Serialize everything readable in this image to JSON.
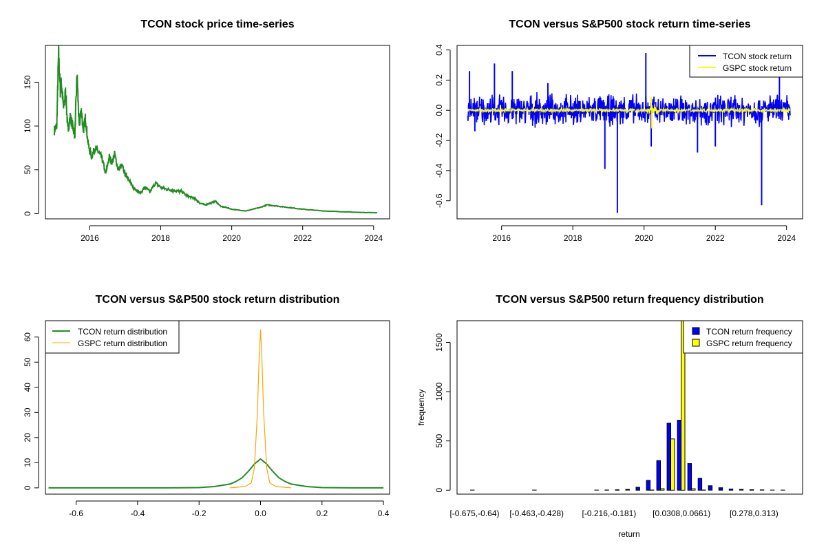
{
  "chart_data": [
    {
      "type": "line",
      "title": "TCON stock price time-series",
      "xlabel": "",
      "ylabel": "",
      "x_ticks": [
        "2016",
        "2018",
        "2020",
        "2022",
        "2024"
      ],
      "y_ticks": [
        "0",
        "50",
        "100",
        "150"
      ],
      "xlim": [
        2014.75,
        2024.45
      ],
      "ylim": [
        -6,
        192
      ],
      "series": [
        {
          "color": "#228b22",
          "x": [
            2015.0,
            2015.07,
            2015.12,
            2015.17,
            2015.2,
            2015.26,
            2015.32,
            2015.38,
            2015.45,
            2015.52,
            2015.58,
            2015.64,
            2015.7,
            2015.76,
            2015.82,
            2015.88,
            2015.95,
            2016.05,
            2016.15,
            2016.25,
            2016.35,
            2016.45,
            2016.55,
            2016.62,
            2016.7,
            2016.8,
            2016.9,
            2017.0,
            2017.1,
            2017.2,
            2017.3,
            2017.42,
            2017.55,
            2017.7,
            2017.85,
            2018.0,
            2018.15,
            2018.3,
            2018.45,
            2018.6,
            2018.75,
            2018.9,
            2019.0,
            2019.1,
            2019.25,
            2019.4,
            2019.55,
            2019.7,
            2019.85,
            2020.0,
            2020.2,
            2020.4,
            2020.6,
            2020.8,
            2021.0,
            2021.2,
            2021.4,
            2021.6,
            2021.8,
            2022.0,
            2022.3,
            2022.6,
            2022.9,
            2023.2,
            2023.5,
            2023.8,
            2024.1
          ],
          "y": [
            95,
            100,
            183,
            140,
            150,
            120,
            140,
            95,
            110,
            100,
            90,
            160,
            100,
            118,
            95,
            110,
            80,
            65,
            75,
            70,
            62,
            45,
            65,
            58,
            68,
            50,
            55,
            45,
            40,
            30,
            28,
            23,
            30,
            25,
            35,
            30,
            28,
            27,
            26,
            25,
            20,
            18,
            16,
            12,
            10,
            12,
            14,
            8,
            7,
            5,
            4,
            3,
            5,
            7,
            10,
            9,
            8,
            7,
            6,
            5,
            4,
            3,
            2.5,
            2,
            1.5,
            1.2,
            1
          ]
        }
      ]
    },
    {
      "type": "line",
      "title": "TCON versus S&P500 stock return time-series",
      "xlabel": "",
      "ylabel": "",
      "x_ticks": [
        "2016",
        "2018",
        "2020",
        "2022",
        "2024"
      ],
      "y_ticks": [
        "-0.6",
        "-0.4",
        "-0.2",
        "0.0",
        "0.2",
        "0.4"
      ],
      "xlim": [
        2014.75,
        2024.45
      ],
      "ylim": [
        -0.72,
        0.43
      ],
      "legend": {
        "position": "top-right",
        "entries": [
          "TCON stock return",
          "GSPC stock return"
        ]
      },
      "series": [
        {
          "name": "TCON stock return",
          "color": "#0000ff",
          "noise_amplitude": 0.1,
          "spikes": [
            {
              "x": 2015.1,
              "y": 0.26
            },
            {
              "x": 2015.25,
              "y": -0.14
            },
            {
              "x": 2015.8,
              "y": 0.31
            },
            {
              "x": 2016.3,
              "y": 0.26
            },
            {
              "x": 2017.3,
              "y": 0.18
            },
            {
              "x": 2018.9,
              "y": -0.39
            },
            {
              "x": 2019.25,
              "y": -0.68
            },
            {
              "x": 2020.05,
              "y": 0.38
            },
            {
              "x": 2020.2,
              "y": -0.24
            },
            {
              "x": 2021.5,
              "y": -0.28
            },
            {
              "x": 2022.0,
              "y": -0.24
            },
            {
              "x": 2023.3,
              "y": -0.63
            },
            {
              "x": 2023.8,
              "y": 0.24
            }
          ]
        },
        {
          "name": "GSPC stock return",
          "color": "#ffff00",
          "noise_amplitude": 0.012,
          "spikes": [
            {
              "x": 2020.2,
              "y": 0.09
            },
            {
              "x": 2020.22,
              "y": -0.12
            }
          ]
        }
      ]
    },
    {
      "type": "line",
      "title": "TCON versus S&P500 stock return distribution",
      "xlabel": "",
      "ylabel": "",
      "x_ticks": [
        "-0.6",
        "-0.4",
        "-0.2",
        "0.0",
        "0.2",
        "0.4"
      ],
      "y_ticks": [
        "0",
        "10",
        "20",
        "30",
        "40",
        "50",
        "60"
      ],
      "xlim": [
        -0.7,
        0.42
      ],
      "ylim": [
        -2.5,
        66.5
      ],
      "legend": {
        "position": "top-left",
        "entries": [
          "TCON return distribution",
          "GSPC return distribution"
        ]
      },
      "series": [
        {
          "name": "TCON return distribution",
          "color": "#228b22",
          "x": [
            -0.69,
            -0.3,
            -0.2,
            -0.15,
            -0.1,
            -0.08,
            -0.06,
            -0.04,
            -0.02,
            0.0,
            0.02,
            0.04,
            0.06,
            0.08,
            0.1,
            0.15,
            0.2,
            0.3,
            0.4
          ],
          "y": [
            0,
            0,
            0.1,
            0.5,
            1.5,
            2.5,
            4.0,
            6.5,
            9.5,
            11.5,
            9.5,
            6.5,
            4.0,
            2.5,
            1.5,
            0.5,
            0.1,
            0,
            0
          ]
        },
        {
          "name": "GSPC return distribution",
          "color": "#ffa500",
          "x": [
            -0.1,
            -0.05,
            -0.03,
            -0.02,
            -0.01,
            -0.005,
            0.0,
            0.005,
            0.01,
            0.02,
            0.03,
            0.05,
            0.1
          ],
          "y": [
            0,
            0.5,
            2,
            8,
            30,
            50,
            63,
            50,
            30,
            8,
            2,
            0.5,
            0
          ]
        }
      ]
    },
    {
      "type": "bar",
      "title": "TCON versus S&P500 return frequency distribution",
      "xlabel": "return",
      "ylabel": "frequency",
      "x_ticks": [
        "[-0.675,-0.64)",
        "[-0.463,-0.428)",
        "[-0.216,-0.181)",
        "[0.0308,0.0661)",
        "[0.278,0.313)"
      ],
      "y_ticks": [
        "0",
        "500",
        "1000",
        "1500"
      ],
      "ylim": [
        -40,
        1720
      ],
      "legend": {
        "position": "top-right",
        "entries": [
          "TCON return frequency",
          "GSPC return frequency"
        ]
      },
      "series": [
        {
          "name": "TCON return frequency",
          "color": "#0000ff",
          "values": [
            1,
            0,
            0,
            0,
            0,
            0,
            1,
            0,
            0,
            0,
            0,
            0,
            1,
            2,
            4,
            8,
            30,
            100,
            300,
            680,
            710,
            270,
            120,
            45,
            25,
            12,
            8,
            5,
            3,
            1,
            1
          ]
        },
        {
          "name": "GSPC return frequency",
          "color": "#ffff00",
          "values": [
            0,
            0,
            0,
            0,
            0,
            0,
            0,
            0,
            0,
            0,
            0,
            0,
            0,
            0,
            0,
            0,
            0,
            2,
            15,
            520,
            1720,
            15,
            2,
            0,
            0,
            0,
            0,
            0,
            0,
            0,
            0
          ]
        }
      ]
    }
  ]
}
